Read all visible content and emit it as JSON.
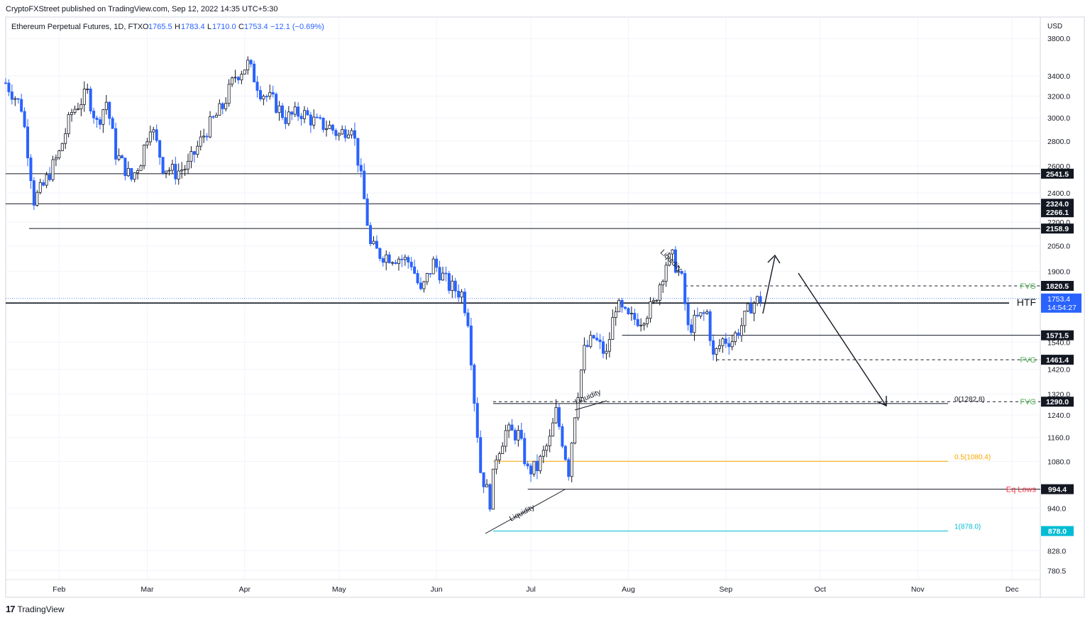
{
  "header": {
    "publisher": "CryptoFXStreet published on TradingView.com, Sep 12, 2022 14:35 UTC+5:30"
  },
  "legend": {
    "symbol": "Ethereum Perpetual Futures, 1D, FTX",
    "open_label": "O",
    "open": "1765.5",
    "high_label": "H",
    "high": "1783.4",
    "low_label": "L",
    "low": "1710.0",
    "close_label": "C",
    "close": "1753.4",
    "change": "−12.1 (−0.69%)"
  },
  "footer": {
    "brand": "TradingView",
    "mark": "17"
  },
  "chart_data": {
    "type": "candlestick",
    "currency": "USD",
    "y_axis_scale": "log",
    "ylim": [
      760,
      4050
    ],
    "xlim": [
      "2022-01-15",
      "2022-12-10"
    ],
    "grid": true,
    "y_ticks": [
      "3800.0",
      "3400.0",
      "3200.0",
      "3000.0",
      "2800.0",
      "2600.0",
      "2400.0",
      "2200.0",
      "2050.0",
      "1900.0",
      "1540.0",
      "1420.0",
      "1320.0",
      "1240.0",
      "1160.0",
      "1080.0",
      "940.0",
      "828.0",
      "780.5"
    ],
    "x_ticks": [
      "Feb",
      "Mar",
      "Apr",
      "May",
      "Jun",
      "Jul",
      "Aug",
      "Sep",
      "Oct",
      "Nov",
      "Dec"
    ],
    "last_price": {
      "value": "1753.4",
      "countdown": "14:54:27",
      "color": "#2962ff"
    },
    "price_labels": [
      {
        "value": "2541.5"
      },
      {
        "value": "2324.0"
      },
      {
        "value": "2266.1"
      },
      {
        "value": "2158.9"
      },
      {
        "value": "1820.5"
      },
      {
        "value": "1730.0"
      },
      {
        "value": "1571.5"
      },
      {
        "value": "1461.4"
      },
      {
        "value": "1290.0"
      },
      {
        "value": "994.4"
      },
      {
        "value": "878.0",
        "color": "#00bcd4"
      }
    ],
    "levels": [
      {
        "price": 2541.5,
        "style": "solid"
      },
      {
        "price": 2324.0,
        "style": "solid"
      },
      {
        "price": 2158.9,
        "style": "solid"
      },
      {
        "price": 1730.0,
        "style": "solid",
        "label": "HTF"
      },
      {
        "price": 1820.5,
        "style": "dashed",
        "label": "FVG"
      },
      {
        "price": 1571.5,
        "style": "solid"
      },
      {
        "price": 1461.4,
        "style": "dashed",
        "label": "FVG"
      },
      {
        "price": 1290.0,
        "style": "dashed",
        "label": "FVG"
      },
      {
        "price": 994.4,
        "style": "solid",
        "label": "Eq Lows",
        "label_color": "#f23645"
      }
    ],
    "fib": [
      {
        "label": "0(1282.8)",
        "price": 1282.8,
        "color": "#131722"
      },
      {
        "label": "0.5(1080.4)",
        "price": 1080.4,
        "color": "#f7a600"
      },
      {
        "label": "1(878.0)",
        "price": 878.0,
        "color": "#00bcd4"
      }
    ],
    "annotations": [
      {
        "text": "Liquidity",
        "near": "2022-08-14"
      },
      {
        "text": "Liquidity",
        "near": "2022-07-17"
      },
      {
        "text": "Liquidity",
        "near": "2022-06-30"
      }
    ],
    "colors": {
      "up": "#ffffff",
      "down": "#2962ff",
      "outline": "#131722"
    },
    "ohlc_path": [
      [
        "2022-01-15",
        3330
      ],
      [
        "2022-01-20",
        3100
      ],
      [
        "2022-01-24",
        2350
      ],
      [
        "2022-01-27",
        2450
      ],
      [
        "2022-02-01",
        2700
      ],
      [
        "2022-02-05",
        3050
      ],
      [
        "2022-02-10",
        3230
      ],
      [
        "2022-02-13",
        2950
      ],
      [
        "2022-02-16",
        3150
      ],
      [
        "2022-02-19",
        2700
      ],
      [
        "2022-02-24",
        2500
      ],
      [
        "2022-02-27",
        2650
      ],
      [
        "2022-03-02",
        2950
      ],
      [
        "2022-03-06",
        2600
      ],
      [
        "2022-03-10",
        2550
      ],
      [
        "2022-03-14",
        2600
      ],
      [
        "2022-03-20",
        2900
      ],
      [
        "2022-03-25",
        3100
      ],
      [
        "2022-03-29",
        3400
      ],
      [
        "2022-04-02",
        3520
      ],
      [
        "2022-04-06",
        3250
      ],
      [
        "2022-04-10",
        3150
      ],
      [
        "2022-04-14",
        3000
      ],
      [
        "2022-04-19",
        3050
      ],
      [
        "2022-04-24",
        2950
      ],
      [
        "2022-04-28",
        2920
      ],
      [
        "2022-05-01",
        2850
      ],
      [
        "2022-05-05",
        2950
      ],
      [
        "2022-05-08",
        2500
      ],
      [
        "2022-05-11",
        2050
      ],
      [
        "2022-05-14",
        2000
      ],
      [
        "2022-05-20",
        1980
      ],
      [
        "2022-05-24",
        1950
      ],
      [
        "2022-05-27",
        1780
      ],
      [
        "2022-05-31",
        1950
      ],
      [
        "2022-06-05",
        1820
      ],
      [
        "2022-06-09",
        1780
      ],
      [
        "2022-06-11",
        1650
      ],
      [
        "2022-06-13",
        1300
      ],
      [
        "2022-06-15",
        1050
      ],
      [
        "2022-06-18",
        960
      ],
      [
        "2022-06-20",
        1100
      ],
      [
        "2022-06-23",
        1180
      ],
      [
        "2022-06-27",
        1170
      ],
      [
        "2022-06-30",
        1050
      ],
      [
        "2022-07-03",
        1060
      ],
      [
        "2022-07-07",
        1150
      ],
      [
        "2022-07-09",
        1250
      ],
      [
        "2022-07-13",
        1050
      ],
      [
        "2022-07-15",
        1250
      ],
      [
        "2022-07-18",
        1500
      ],
      [
        "2022-07-21",
        1560
      ],
      [
        "2022-07-25",
        1480
      ],
      [
        "2022-07-28",
        1720
      ],
      [
        "2022-08-01",
        1650
      ],
      [
        "2022-08-05",
        1650
      ],
      [
        "2022-08-09",
        1720
      ],
      [
        "2022-08-13",
        1950
      ],
      [
        "2022-08-15",
        1980
      ],
      [
        "2022-08-18",
        1850
      ],
      [
        "2022-08-20",
        1600
      ],
      [
        "2022-08-23",
        1650
      ],
      [
        "2022-08-26",
        1680
      ],
      [
        "2022-08-28",
        1470
      ],
      [
        "2022-08-31",
        1550
      ],
      [
        "2022-09-03",
        1550
      ],
      [
        "2022-09-06",
        1620
      ],
      [
        "2022-09-09",
        1720
      ],
      [
        "2022-09-12",
        1753
      ]
    ]
  }
}
